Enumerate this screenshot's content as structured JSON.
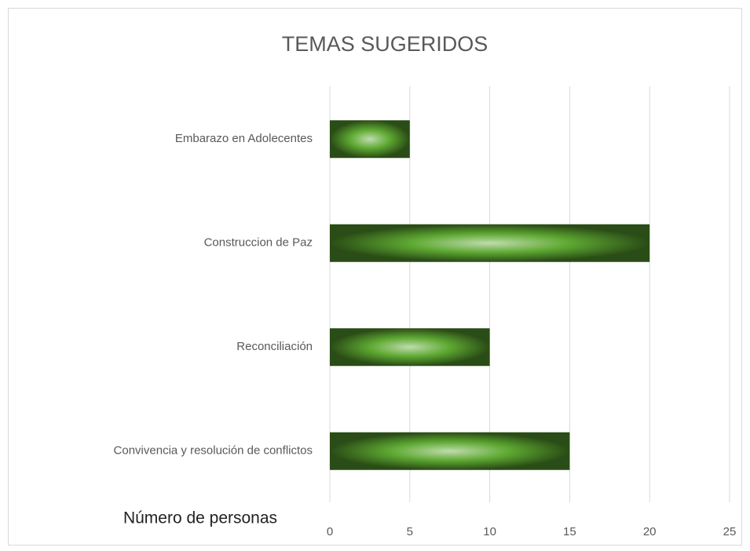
{
  "chart_data": {
    "type": "hbar",
    "title": "TEMAS SUGERIDOS",
    "categories": [
      "Embarazo en Adolecentes",
      "Construccion de Paz",
      "Reconciliación",
      "Convivencia y resolución de conflictos"
    ],
    "values": [
      5,
      20,
      10,
      15
    ],
    "color": "#5ea832",
    "xlabel": "Número de personas",
    "xlim": [
      0,
      25
    ],
    "xticks": [
      0,
      5,
      10,
      15,
      20,
      25
    ],
    "grid": true
  }
}
